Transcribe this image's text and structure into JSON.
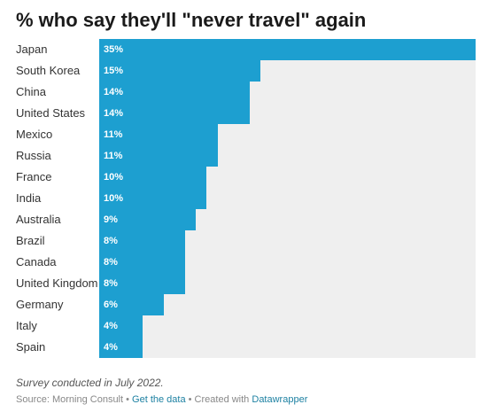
{
  "chart_data": {
    "type": "bar",
    "orientation": "horizontal",
    "title": "% who say they'll \"never travel\" again",
    "categories": [
      "Japan",
      "South Korea",
      "China",
      "United States",
      "Mexico",
      "Russia",
      "France",
      "India",
      "Australia",
      "Brazil",
      "Canada",
      "United Kingdom",
      "Germany",
      "Italy",
      "Spain"
    ],
    "values": [
      35,
      15,
      14,
      14,
      11,
      11,
      10,
      10,
      9,
      8,
      8,
      8,
      6,
      4,
      4
    ],
    "value_labels": [
      "35%",
      "15%",
      "14%",
      "14%",
      "11%",
      "11%",
      "10%",
      "10%",
      "9%",
      "8%",
      "8%",
      "8%",
      "6%",
      "4%",
      "4%"
    ],
    "xlim": [
      0,
      35
    ],
    "grid": false,
    "legend": "none",
    "bar_color": "#1d9fd0",
    "track_color": "#efefef"
  },
  "notes": "Survey conducted in July 2022.",
  "footer": {
    "source_label": "Source: Morning Consult",
    "separator": " • ",
    "get_data_label": "Get the data",
    "created_with_label": "Created with",
    "datawrapper_label": "Datawrapper"
  }
}
